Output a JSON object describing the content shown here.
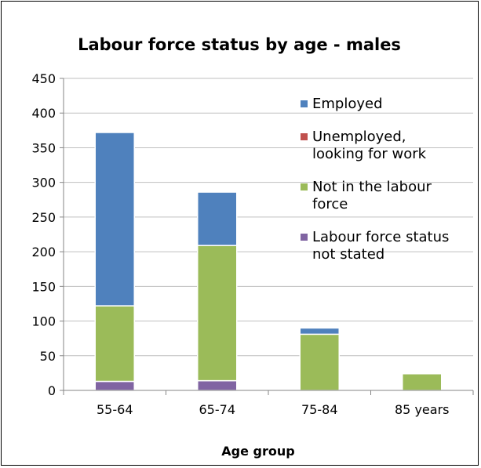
{
  "chart_data": {
    "type": "bar",
    "stacked": true,
    "title": "Labour force status by age - males",
    "xlabel": "Age group",
    "ylabel": "",
    "ylim": [
      0,
      450
    ],
    "yticks": [
      0,
      50,
      100,
      150,
      200,
      250,
      300,
      350,
      400,
      450
    ],
    "grid": true,
    "legend_position": "right",
    "categories": [
      "55-64",
      "65-74",
      "75-84",
      "85 years"
    ],
    "series": [
      {
        "name": "Labour force status not stated",
        "color": "#8064a2",
        "values": [
          13,
          14,
          0,
          0
        ]
      },
      {
        "name": "Not in the labour force",
        "color": "#9bbb59",
        "values": [
          109,
          195,
          81,
          24
        ]
      },
      {
        "name": "Unemployed, looking for work",
        "color": "#c0504d",
        "values": [
          0,
          0,
          0,
          0
        ]
      },
      {
        "name": "Employed",
        "color": "#4f81bd",
        "values": [
          250,
          77,
          9,
          0
        ]
      }
    ],
    "legend": [
      {
        "lines": [
          "Employed"
        ],
        "color": "#4f81bd"
      },
      {
        "lines": [
          "Unemployed,",
          "looking for work"
        ],
        "color": "#c0504d"
      },
      {
        "lines": [
          "Not in the labour",
          "force"
        ],
        "color": "#9bbb59"
      },
      {
        "lines": [
          "Labour force status",
          "not stated"
        ],
        "color": "#8064a2"
      }
    ]
  }
}
